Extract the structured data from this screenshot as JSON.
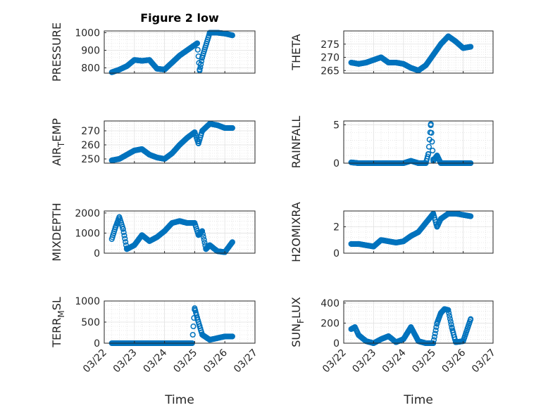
{
  "chart_data": [
    {
      "type": "scatter",
      "title": "Figure 2 low",
      "ylabel": "PRESSURE",
      "xlabel": "",
      "ylim": [
        770,
        1010
      ],
      "yticks": [
        800,
        900,
        1000
      ],
      "xlim": [
        "03/22",
        "03/27"
      ],
      "xticks": [],
      "grid": true,
      "x": [
        "03/22 06:00",
        "03/22 12:00",
        "03/22 18:00",
        "03/23 00:00",
        "03/23 06:00",
        "03/23 12:00",
        "03/23 18:00",
        "03/24 00:00",
        "03/24 06:00",
        "03/24 12:00",
        "03/24 18:00",
        "03/24 23:00",
        "03/25 02:00",
        "03/25 04:00",
        "03/25 06:00",
        "03/25 12:00",
        "03/25 18:00",
        "03/26 00:00",
        "03/26 06:00"
      ],
      "y": [
        775,
        790,
        810,
        845,
        840,
        845,
        795,
        790,
        830,
        870,
        900,
        925,
        940,
        785,
        860,
        1000,
        1000,
        995,
        985
      ]
    },
    {
      "type": "scatter",
      "title": "",
      "ylabel": "THETA",
      "xlabel": "",
      "ylim": [
        264,
        280
      ],
      "yticks": [
        265,
        270,
        275
      ],
      "xlim": [
        "03/22",
        "03/27"
      ],
      "xticks": [],
      "grid": true,
      "x": [
        "03/22 06:00",
        "03/22 12:00",
        "03/22 18:00",
        "03/23 00:00",
        "03/23 06:00",
        "03/23 12:00",
        "03/23 18:00",
        "03/24 00:00",
        "03/24 06:00",
        "03/24 12:00",
        "03/24 18:00",
        "03/25 00:00",
        "03/25 06:00",
        "03/25 12:00",
        "03/25 18:00",
        "03/26 00:00",
        "03/26 06:00"
      ],
      "y": [
        268,
        267.5,
        268,
        269,
        270,
        268,
        268,
        267.5,
        266,
        265,
        267,
        271,
        275,
        278,
        276,
        273.5,
        274
      ]
    },
    {
      "type": "scatter",
      "title": "",
      "ylabel": "AIR_TEMP",
      "ylabel_sub": "T",
      "xlabel": "",
      "ylim": [
        247,
        277
      ],
      "yticks": [
        250,
        260,
        270
      ],
      "xlim": [
        "03/22",
        "03/27"
      ],
      "xticks": [],
      "grid": true,
      "x": [
        "03/22 06:00",
        "03/22 12:00",
        "03/22 18:00",
        "03/23 00:00",
        "03/23 06:00",
        "03/23 12:00",
        "03/23 18:00",
        "03/24 00:00",
        "03/24 06:00",
        "03/24 12:00",
        "03/24 18:00",
        "03/25 00:00",
        "03/25 03:00",
        "03/25 06:00",
        "03/25 12:00",
        "03/25 18:00",
        "03/26 00:00",
        "03/26 06:00"
      ],
      "y": [
        249,
        250,
        253,
        256,
        257,
        253,
        251,
        250,
        254,
        260,
        265,
        269,
        261,
        270,
        275,
        274,
        272,
        272
      ]
    },
    {
      "type": "scatter",
      "title": "",
      "ylabel": "RAINFALL",
      "xlabel": "",
      "ylim": [
        0,
        5.5
      ],
      "yticks": [
        0,
        5
      ],
      "xlim": [
        "03/22",
        "03/27"
      ],
      "xticks": [],
      "grid": true,
      "x": [
        "03/22 06:00",
        "03/22 12:00",
        "03/22 18:00",
        "03/23 00:00",
        "03/23 06:00",
        "03/23 12:00",
        "03/23 18:00",
        "03/24 00:00",
        "03/24 06:00",
        "03/24 12:00",
        "03/24 18:00",
        "03/24 20:00",
        "03/24 22:00",
        "03/25 00:00",
        "03/25 03:00",
        "03/25 06:00",
        "03/25 12:00",
        "03/25 18:00",
        "03/26 00:00",
        "03/26 06:00"
      ],
      "y": [
        0.1,
        0,
        0,
        0,
        0,
        0,
        0,
        0,
        0.3,
        0,
        0,
        1.2,
        5.1,
        0.3,
        1.0,
        0,
        0,
        0,
        0,
        0
      ]
    },
    {
      "type": "scatter",
      "title": "",
      "ylabel": "MIXDEPTH",
      "xlabel": "",
      "ylim": [
        0,
        2100
      ],
      "yticks": [
        0,
        1000,
        2000
      ],
      "xlim": [
        "03/22",
        "03/27"
      ],
      "xticks": [],
      "grid": true,
      "x": [
        "03/22 06:00",
        "03/22 09:00",
        "03/22 12:00",
        "03/22 15:00",
        "03/22 18:00",
        "03/23 00:00",
        "03/23 06:00",
        "03/23 12:00",
        "03/23 18:00",
        "03/24 00:00",
        "03/24 06:00",
        "03/24 12:00",
        "03/24 18:00",
        "03/25 00:00",
        "03/25 03:00",
        "03/25 06:00",
        "03/25 09:00",
        "03/25 12:00",
        "03/25 18:00",
        "03/26 00:00",
        "03/26 06:00"
      ],
      "y": [
        700,
        1300,
        1800,
        1200,
        200,
        400,
        900,
        600,
        800,
        1100,
        1500,
        1600,
        1500,
        1500,
        900,
        1100,
        200,
        400,
        100,
        50,
        550
      ]
    },
    {
      "type": "scatter",
      "title": "",
      "ylabel": "H2OMIXRA",
      "xlabel": "",
      "ylim": [
        0,
        3.2
      ],
      "yticks": [
        0,
        2
      ],
      "xlim": [
        "03/22",
        "03/27"
      ],
      "xticks": [],
      "grid": true,
      "x": [
        "03/22 06:00",
        "03/22 12:00",
        "03/22 18:00",
        "03/23 00:00",
        "03/23 06:00",
        "03/23 12:00",
        "03/23 18:00",
        "03/24 00:00",
        "03/24 06:00",
        "03/24 12:00",
        "03/24 18:00",
        "03/25 00:00",
        "03/25 03:00",
        "03/25 06:00",
        "03/25 12:00",
        "03/25 18:00",
        "03/26 00:00",
        "03/26 06:00"
      ],
      "y": [
        0.7,
        0.7,
        0.6,
        0.5,
        1.0,
        0.9,
        0.8,
        0.9,
        1.3,
        1.6,
        2.3,
        3.0,
        2.0,
        2.6,
        3.0,
        3.0,
        2.9,
        2.8
      ]
    },
    {
      "type": "scatter",
      "title": "",
      "ylabel": "TERR_MSL",
      "ylabel_sub": "M",
      "xlabel": "Time",
      "ylim": [
        0,
        1000
      ],
      "yticks": [
        0,
        500,
        1000
      ],
      "xlim": [
        "03/22",
        "03/27"
      ],
      "xticks": [
        "03/22",
        "03/23",
        "03/24",
        "03/25",
        "03/26",
        "03/27"
      ],
      "grid": true,
      "x": [
        "03/22 06:00",
        "03/22 12:00",
        "03/23 00:00",
        "03/23 12:00",
        "03/24 00:00",
        "03/24 12:00",
        "03/24 22:00",
        "03/25 00:00",
        "03/25 02:00",
        "03/25 04:00",
        "03/25 06:00",
        "03/25 12:00",
        "03/25 18:00",
        "03/26 00:00",
        "03/26 06:00"
      ],
      "y": [
        0,
        0,
        0,
        0,
        0,
        0,
        0,
        830,
        600,
        400,
        200,
        80,
        120,
        160,
        160
      ]
    },
    {
      "type": "scatter",
      "title": "",
      "ylabel": "SUN_FLUX",
      "ylabel_sub": "F",
      "xlabel": "Time",
      "ylim": [
        0,
        420
      ],
      "yticks": [
        0,
        200,
        400
      ],
      "xlim": [
        "03/22",
        "03/27"
      ],
      "xticks": [
        "03/22",
        "03/23",
        "03/24",
        "03/25",
        "03/26",
        "03/27"
      ],
      "grid": true,
      "x": [
        "03/22 06:00",
        "03/22 09:00",
        "03/22 12:00",
        "03/22 18:00",
        "03/23 00:00",
        "03/23 06:00",
        "03/23 12:00",
        "03/23 18:00",
        "03/24 00:00",
        "03/24 06:00",
        "03/24 12:00",
        "03/24 18:00",
        "03/25 00:00",
        "03/25 03:00",
        "03/25 06:00",
        "03/25 09:00",
        "03/25 12:00",
        "03/25 15:00",
        "03/25 18:00",
        "03/26 00:00",
        "03/26 06:00"
      ],
      "y": [
        140,
        160,
        80,
        20,
        0,
        40,
        70,
        10,
        40,
        160,
        20,
        0,
        0,
        200,
        300,
        340,
        330,
        150,
        10,
        20,
        240
      ]
    }
  ]
}
